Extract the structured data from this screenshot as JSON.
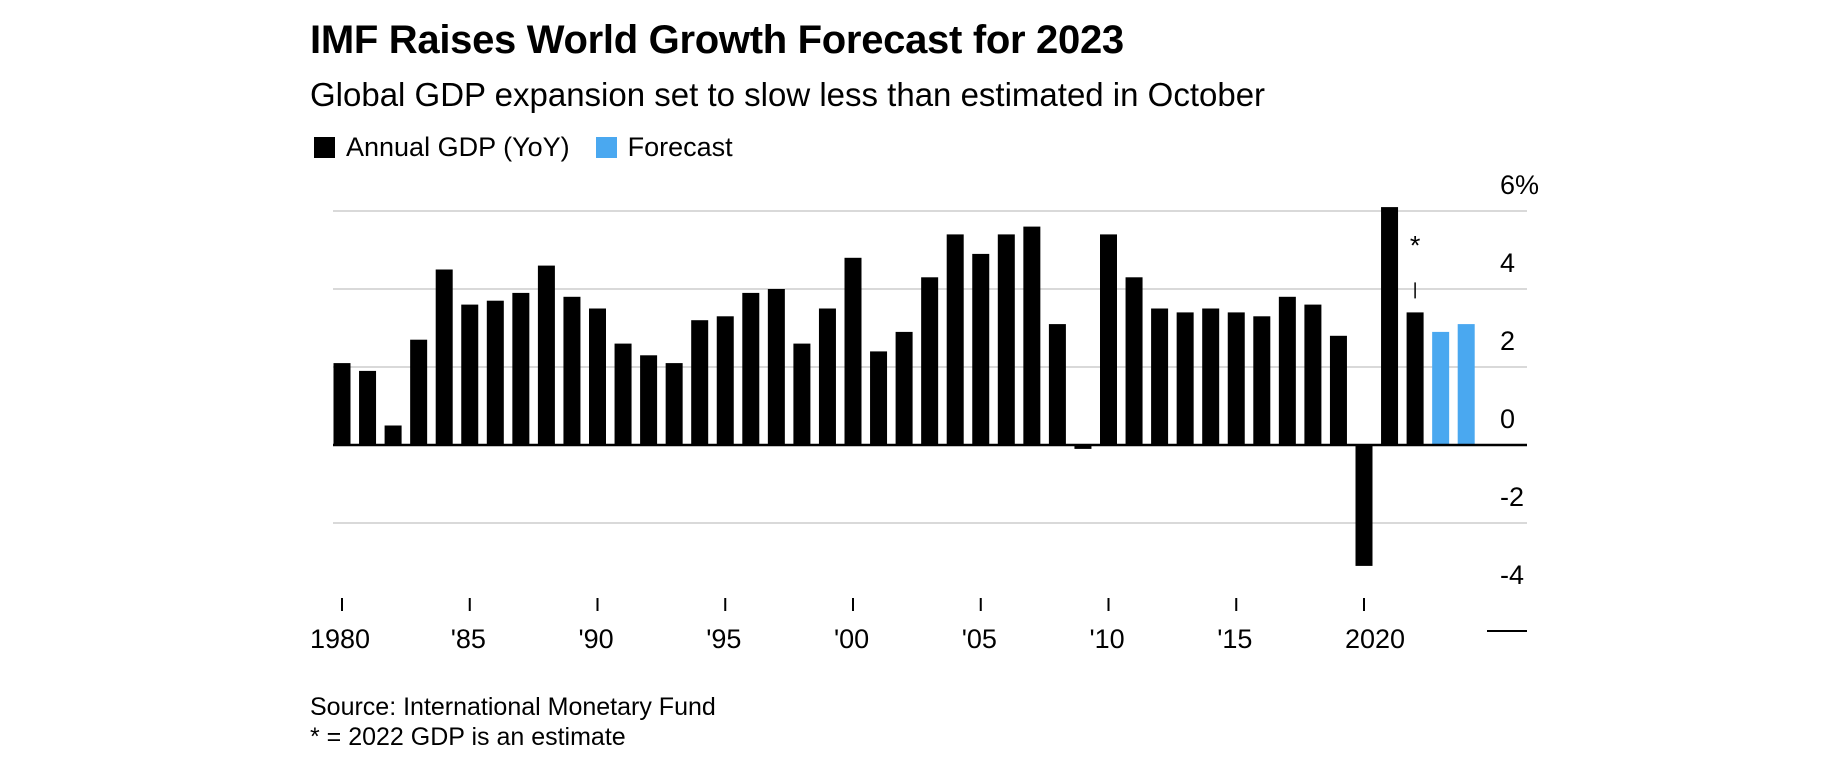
{
  "header": {
    "title": "IMF Raises World Growth Forecast for 2023",
    "subtitle": "Global GDP expansion set to slow less than estimated in October"
  },
  "legend": [
    {
      "label": "Annual GDP (YoY)",
      "color": "#000000"
    },
    {
      "label": "Forecast",
      "color": "#4aa8f0"
    }
  ],
  "footer": {
    "source": "Source: International Monetary Fund",
    "note": "* = 2022 GDP is an estimate"
  },
  "chart_data": {
    "type": "bar",
    "title": "IMF Raises World Growth Forecast for 2023",
    "subtitle": "Global GDP expansion set to slow less than estimated in October",
    "xlabel": "",
    "ylabel": "",
    "ylim": [
      -4,
      6
    ],
    "yticks": [
      6,
      4,
      2,
      0,
      -2,
      -4
    ],
    "ytick_labels": [
      "6%",
      "4",
      "2",
      "0",
      "-2",
      "-4"
    ],
    "xticks": [
      1980,
      1985,
      1990,
      1995,
      2000,
      2005,
      2010,
      2015,
      2020
    ],
    "xtick_labels": [
      "1980",
      "'85",
      "'90",
      "'95",
      "'00",
      "'05",
      "'10",
      "'15",
      "2020"
    ],
    "annotation": {
      "year": 2022,
      "text": "*"
    },
    "series": [
      {
        "name": "Annual GDP (YoY)",
        "color": "#000000",
        "years": [
          1980,
          1981,
          1982,
          1983,
          1984,
          1985,
          1986,
          1987,
          1988,
          1989,
          1990,
          1991,
          1992,
          1993,
          1994,
          1995,
          1996,
          1997,
          1998,
          1999,
          2000,
          2001,
          2002,
          2003,
          2004,
          2005,
          2006,
          2007,
          2008,
          2009,
          2010,
          2011,
          2012,
          2013,
          2014,
          2015,
          2016,
          2017,
          2018,
          2019,
          2020,
          2021,
          2022
        ],
        "values": [
          2.1,
          1.9,
          0.5,
          2.7,
          4.5,
          3.6,
          3.7,
          3.9,
          4.6,
          3.8,
          3.5,
          2.6,
          2.3,
          2.1,
          3.2,
          3.3,
          3.9,
          4.0,
          2.6,
          3.5,
          4.8,
          2.4,
          2.9,
          4.3,
          5.4,
          4.9,
          5.4,
          5.6,
          3.1,
          -0.1,
          5.4,
          4.3,
          3.5,
          3.4,
          3.5,
          3.4,
          3.3,
          3.8,
          3.6,
          2.8,
          -3.1,
          6.1,
          3.4
        ]
      },
      {
        "name": "Forecast",
        "color": "#4aa8f0",
        "years": [
          2023,
          2024
        ],
        "values": [
          2.9,
          3.1
        ]
      }
    ]
  }
}
